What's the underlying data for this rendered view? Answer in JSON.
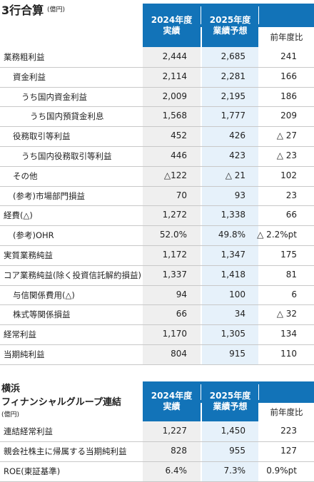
{
  "table1": {
    "title": "3行合算",
    "unit": "(億円)",
    "headers": [
      [
        "2024年度",
        "実績"
      ],
      [
        "2025年度",
        "業績予想"
      ],
      [
        "前年度比"
      ]
    ],
    "rows": [
      [
        "業務粗利益",
        "2,444",
        "2,685",
        "241"
      ],
      [
        "資金利益",
        "2,114",
        "2,281",
        "166"
      ],
      [
        "うち国内資金利益",
        "2,009",
        "2,195",
        "186"
      ],
      [
        "うち国内預貸金利息",
        "1,568",
        "1,777",
        "209"
      ],
      [
        "役務取引等利益",
        "452",
        "426",
        "△ 27"
      ],
      [
        "うち国内役務取引等利益",
        "446",
        "423",
        "△ 23"
      ],
      [
        "その他",
        "△122",
        "△ 21",
        "102"
      ],
      [
        "(参考)市場部門損益",
        "70",
        "93",
        "23"
      ],
      [
        "経費(△)",
        "1,272",
        "1,338",
        "66"
      ],
      [
        "(参考)OHR",
        "52.0%",
        "49.8%",
        "△ 2.2%pt"
      ],
      [
        "実質業務純益",
        "1,172",
        "1,347",
        "175"
      ],
      [
        "コア業務純益(除く投資信託解約損益)",
        "1,337",
        "1,418",
        "81"
      ],
      [
        "与信関係費用(△)",
        "94",
        "100",
        "6"
      ],
      [
        "株式等関係損益",
        "66",
        "34",
        "△ 32"
      ],
      [
        "経常利益",
        "1,170",
        "1,305",
        "134"
      ],
      [
        "当期純利益",
        "804",
        "915",
        "110"
      ]
    ]
  },
  "table2": {
    "title": [
      "横浜",
      "フィナンシャルグループ連結"
    ],
    "unit": "(億円)",
    "headers": [
      [
        "2024年度",
        "実績"
      ],
      [
        "2025年度",
        "業績予想"
      ],
      [
        "前年度比"
      ]
    ],
    "rows": [
      [
        "連結経常利益",
        "1,227",
        "1,450",
        "223"
      ],
      [
        "親会社株主に帰属する当期純利益",
        "828",
        "955",
        "127"
      ],
      [
        "ROE(東証基準)",
        "6.4%",
        "7.3%",
        "0.9%pt"
      ]
    ]
  }
}
